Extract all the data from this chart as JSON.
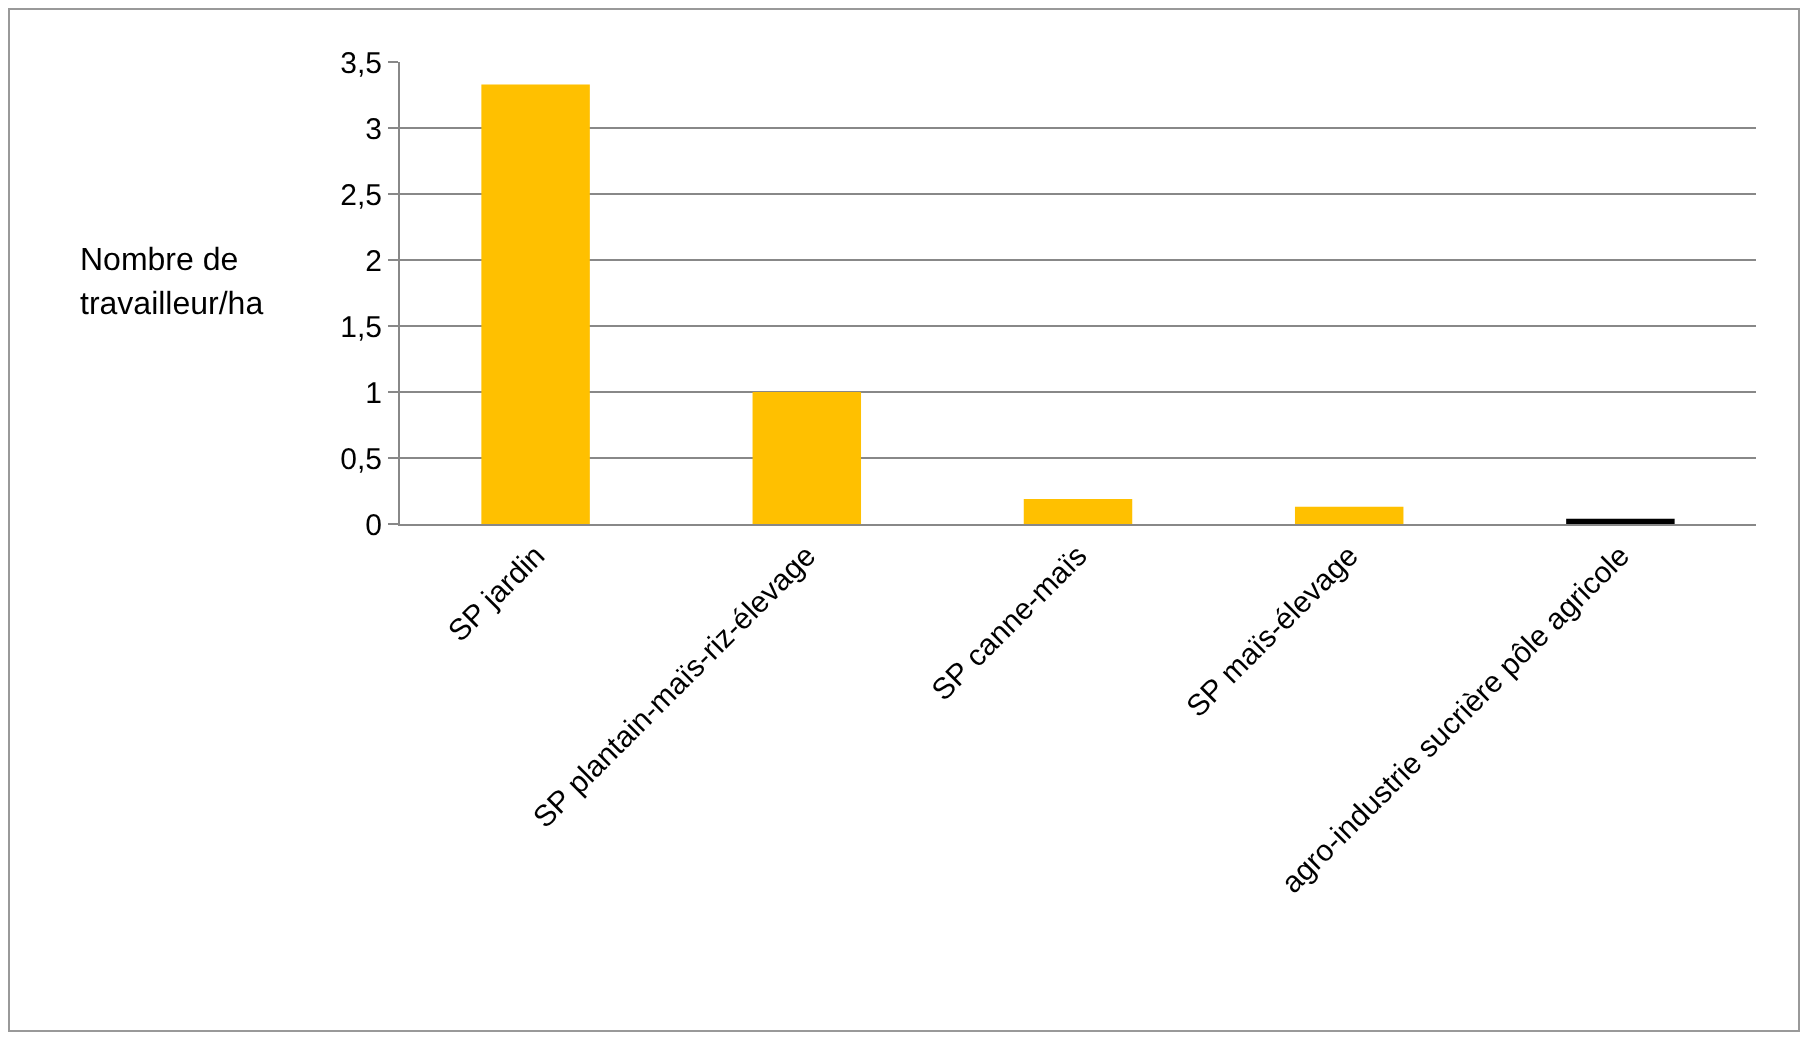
{
  "chart_data": {
    "type": "bar",
    "ylabel": "Nombre de travailleur/ha",
    "categories": [
      "SP jardin",
      "SP plantain-maïs-riz-élevage",
      "SP canne-maïs",
      "SP maïs-élevage",
      "agro-industrie sucrière pôle agricole"
    ],
    "values": [
      3.33,
      1,
      0.19,
      0.13,
      0.04
    ],
    "colors": [
      "#ffc000",
      "#ffc000",
      "#ffc000",
      "#ffc000",
      "#000000"
    ],
    "ylim": [
      0,
      3.5
    ],
    "yticks": [
      0,
      {
        "value": 0.5,
        "label": "0,5"
      },
      1,
      {
        "value": 1.5,
        "label": "1,5"
      },
      2,
      {
        "value": 2.5,
        "label": "2,5"
      },
      3,
      {
        "value": 3.5,
        "label": "3,5"
      }
    ],
    "grid": "y"
  }
}
